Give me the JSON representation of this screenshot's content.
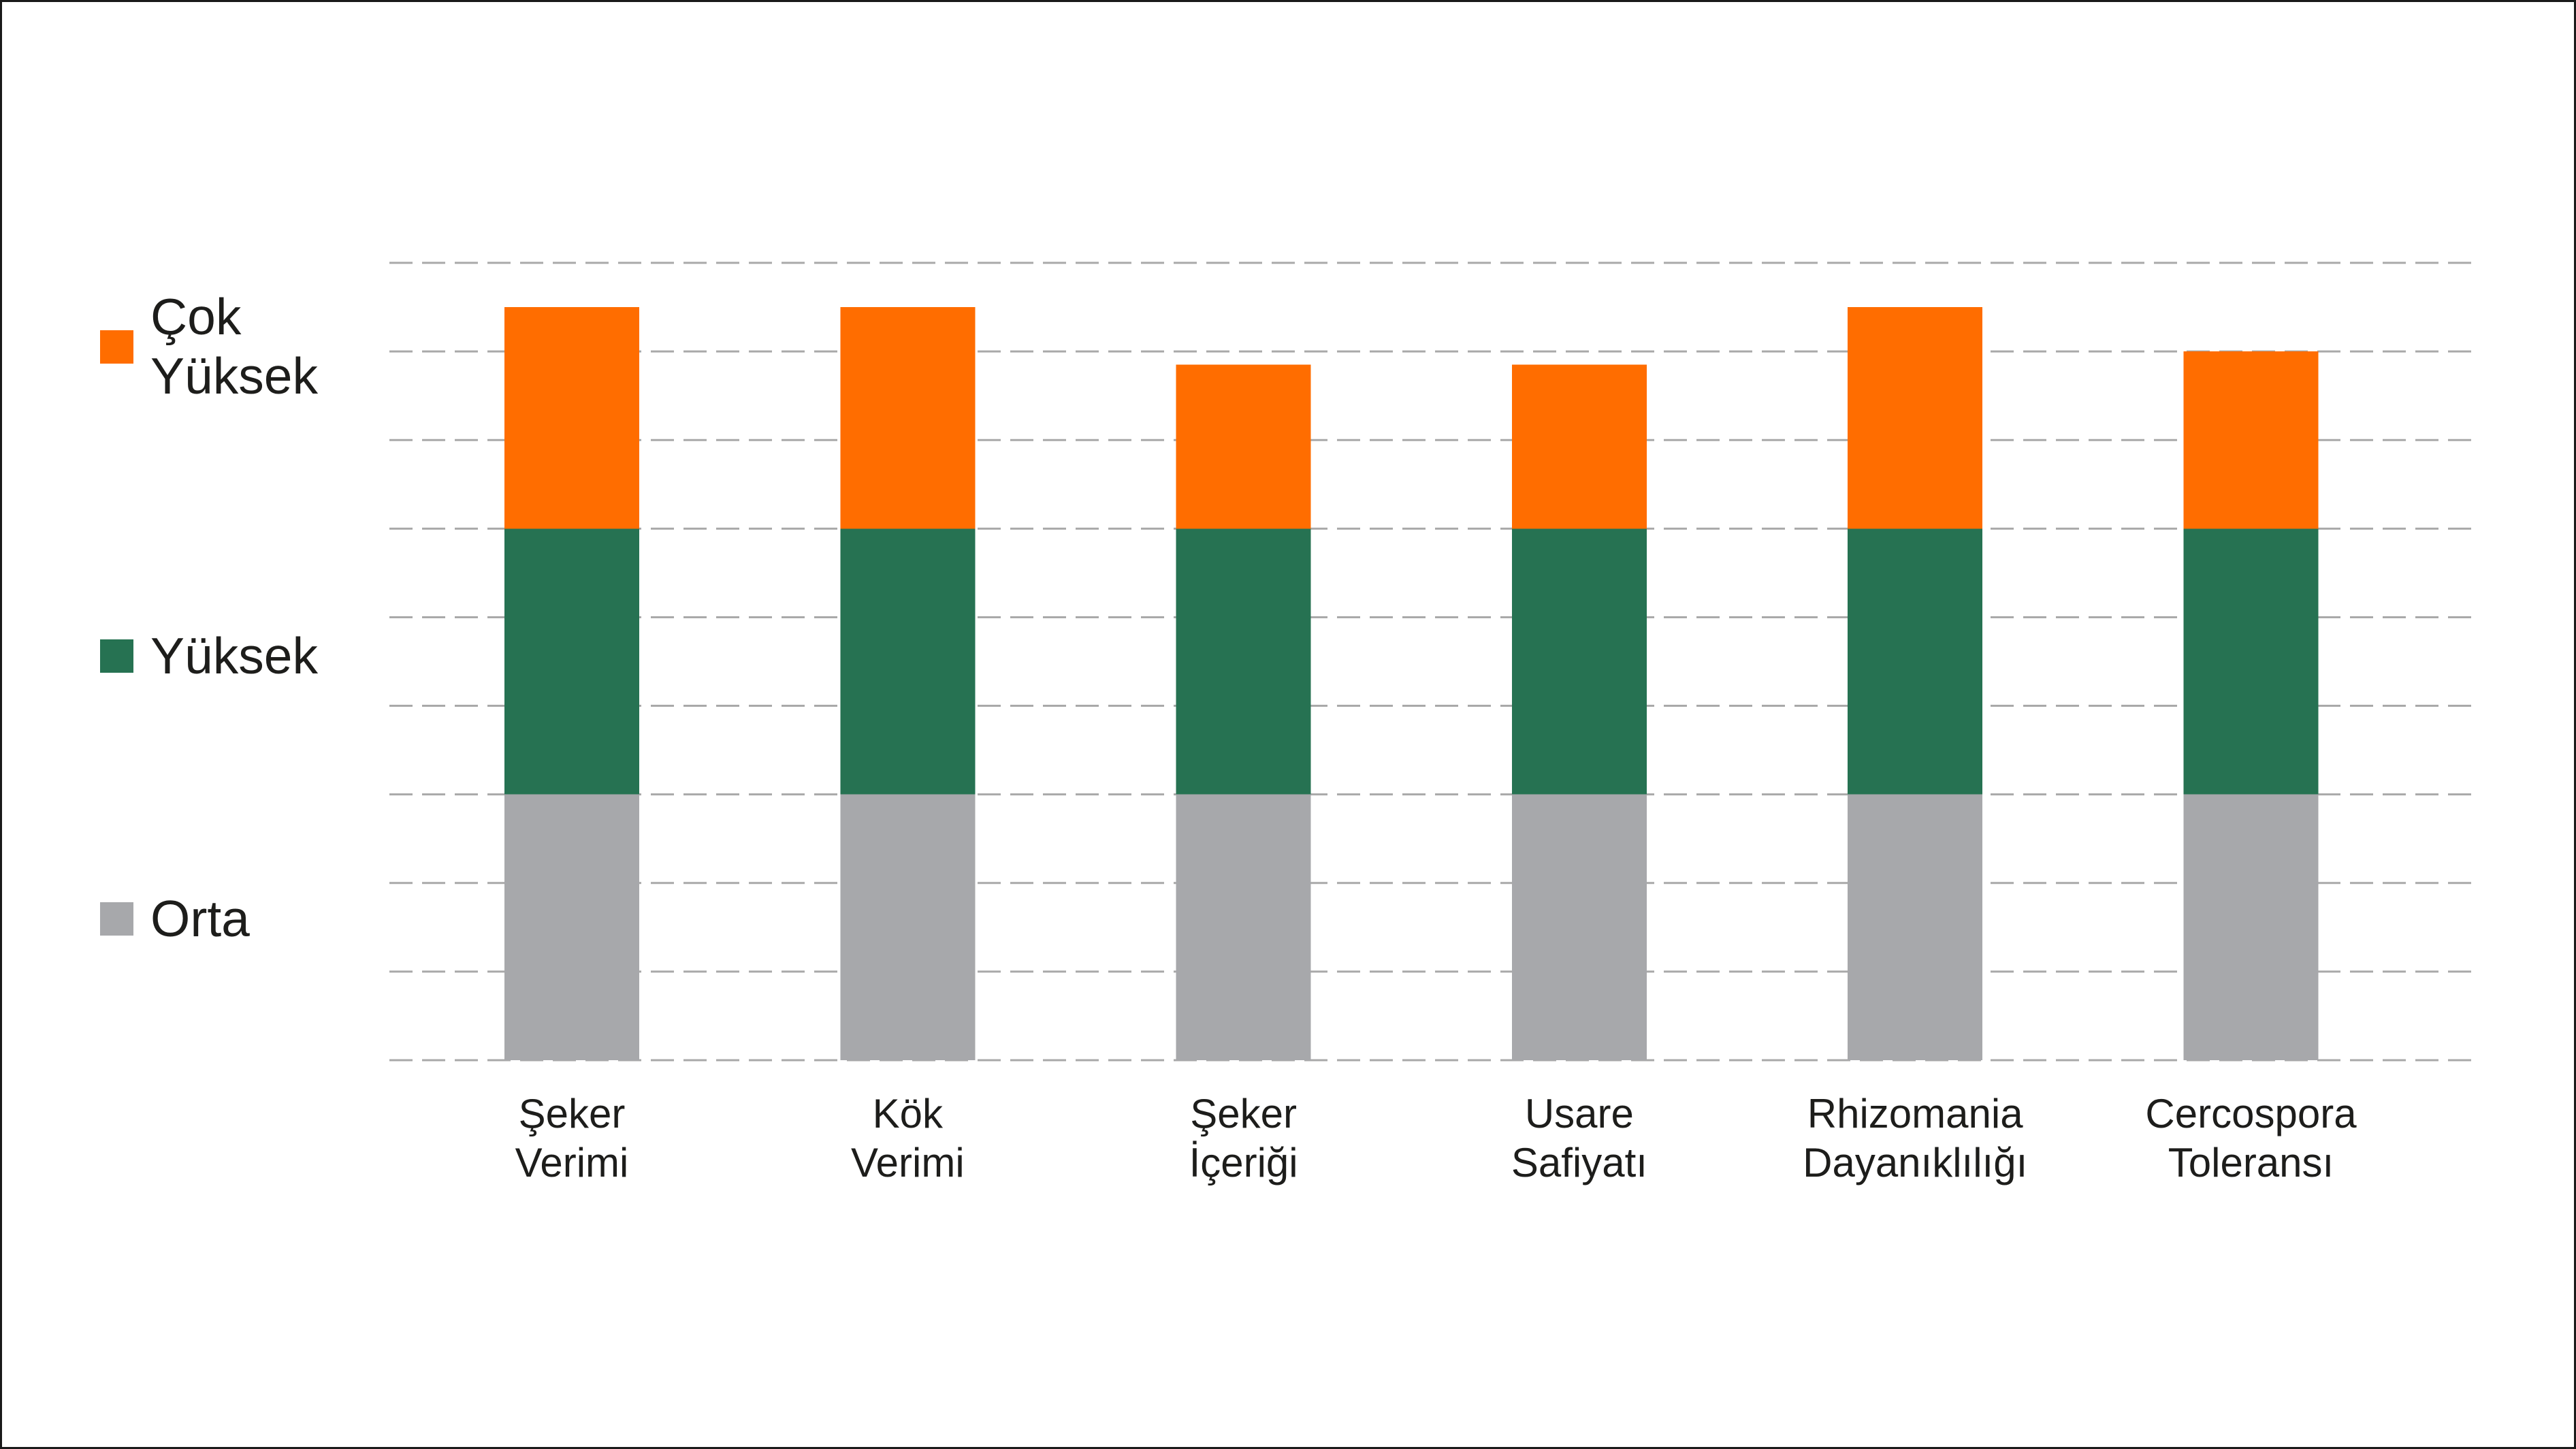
{
  "chart_data": {
    "type": "bar",
    "stacked": true,
    "categories": [
      "Şeker Verimi",
      "Kök Verimi",
      "Şeker İçeriği",
      "Usare Safiyatı",
      "Rhizomania Dayanıklılığı",
      "Cercospora Toleransı"
    ],
    "series": [
      {
        "name": "Orta",
        "color": "#A7A8AB",
        "values": [
          3,
          3,
          3,
          3,
          3,
          3
        ]
      },
      {
        "name": "Yüksek",
        "color": "#267252",
        "values": [
          3,
          3,
          3,
          3,
          3,
          3
        ]
      },
      {
        "name": "Çok Yüksek",
        "color": "#FF6D00",
        "values": [
          2.5,
          2.5,
          1.85,
          1.85,
          2.5,
          2
        ]
      }
    ],
    "ylim": [
      0,
      9
    ],
    "grid": true,
    "grid_style": "dashed",
    "grid_color": "#A9A9A9",
    "legend_position": "left"
  }
}
